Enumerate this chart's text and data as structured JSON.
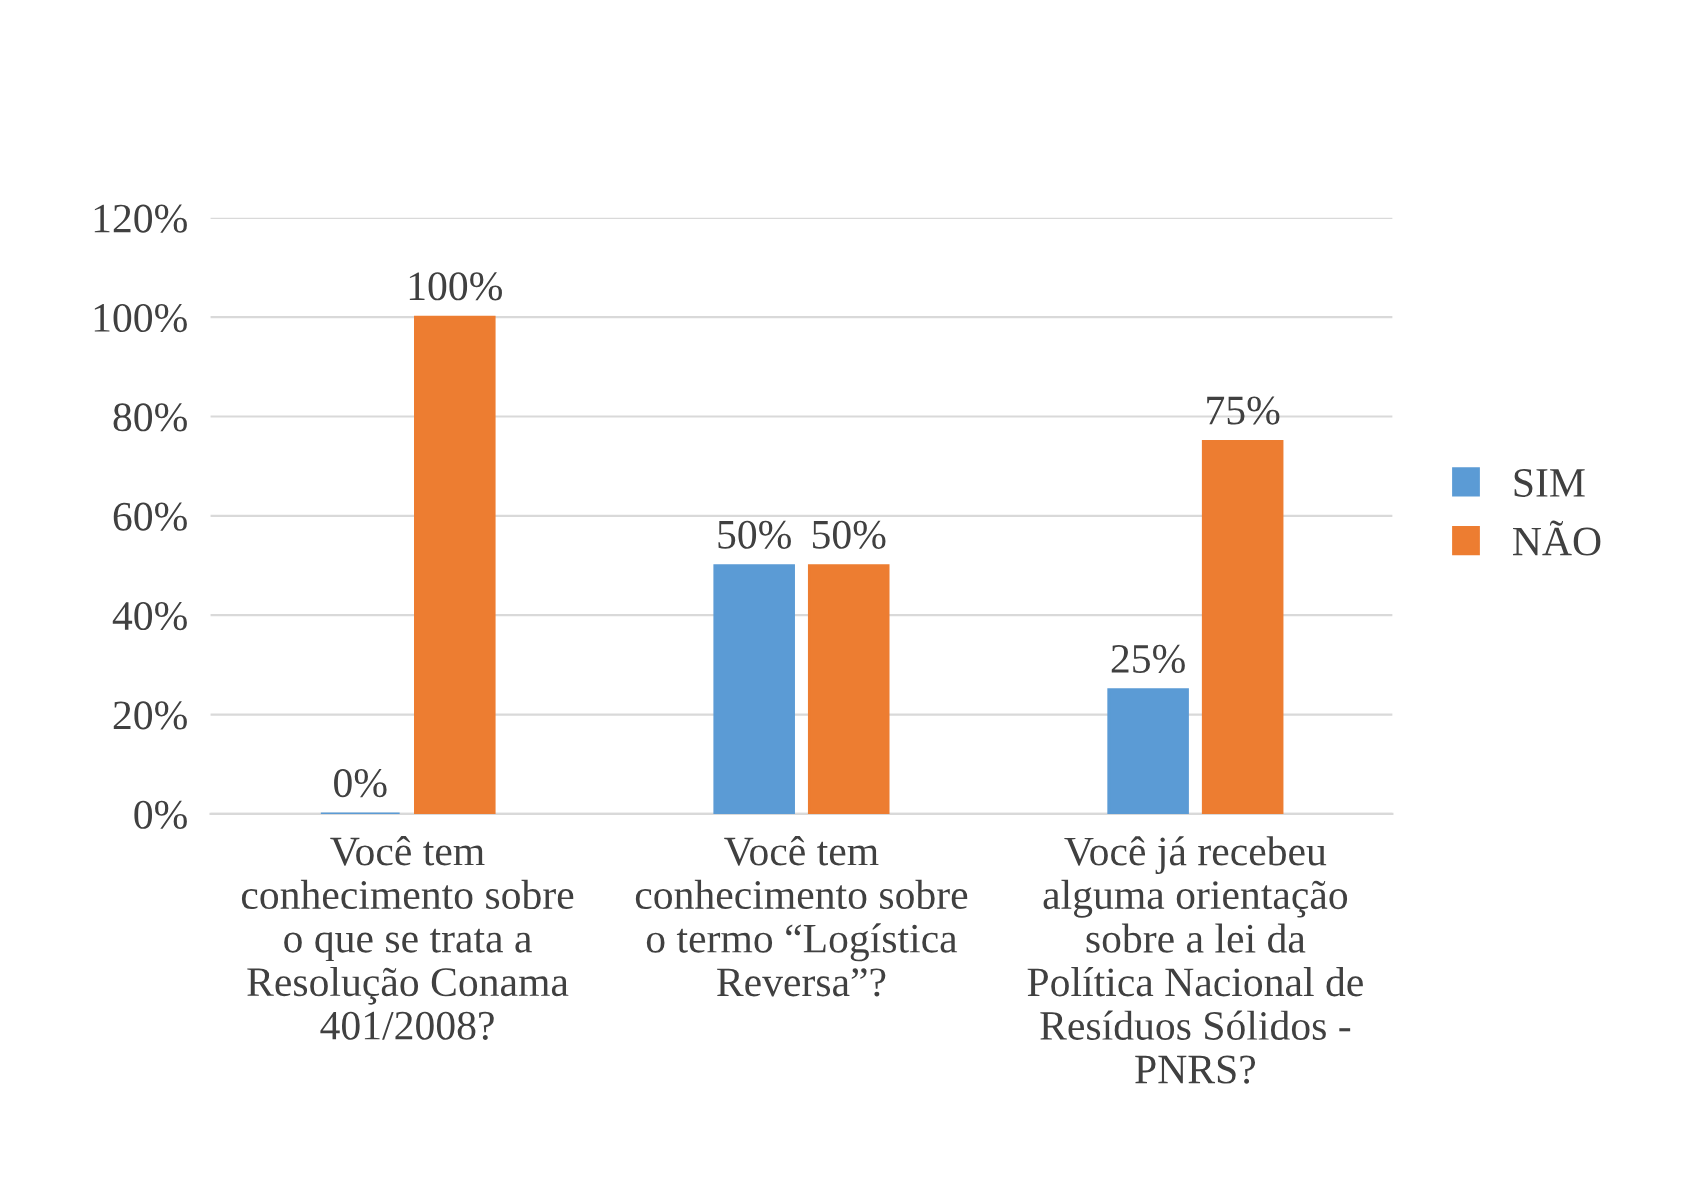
{
  "chart_data": {
    "type": "bar",
    "categories": [
      "Você tem\nconhecimento sobre\no que se trata a\nResolução Conama\n401/2008?",
      "Você tem\nconhecimento sobre\no termo “Logística\nReversa”?",
      "Você já recebeu\nalguma orientação\nsobre a lei da\nPolítica Nacional de\nResíduos Sólidos -\nPNRS?"
    ],
    "series": [
      {
        "name": "SIM",
        "color": "#5b9bd5",
        "values": [
          0,
          50,
          25
        ],
        "value_labels": [
          "0%",
          "50%",
          "25%"
        ]
      },
      {
        "name": "NÃO",
        "color": "#ed7d31",
        "values": [
          100,
          50,
          75
        ],
        "value_labels": [
          "100%",
          "50%",
          "75%"
        ]
      }
    ],
    "ylim": [
      0,
      120
    ],
    "yticks": [
      {
        "value": 0,
        "label": "0%"
      },
      {
        "value": 20,
        "label": "20%"
      },
      {
        "value": 40,
        "label": "40%"
      },
      {
        "value": 60,
        "label": "60%"
      },
      {
        "value": 80,
        "label": "80%"
      },
      {
        "value": 100,
        "label": "100%"
      },
      {
        "value": 120,
        "label": "120%"
      }
    ],
    "grid": "y",
    "legend": "right"
  }
}
